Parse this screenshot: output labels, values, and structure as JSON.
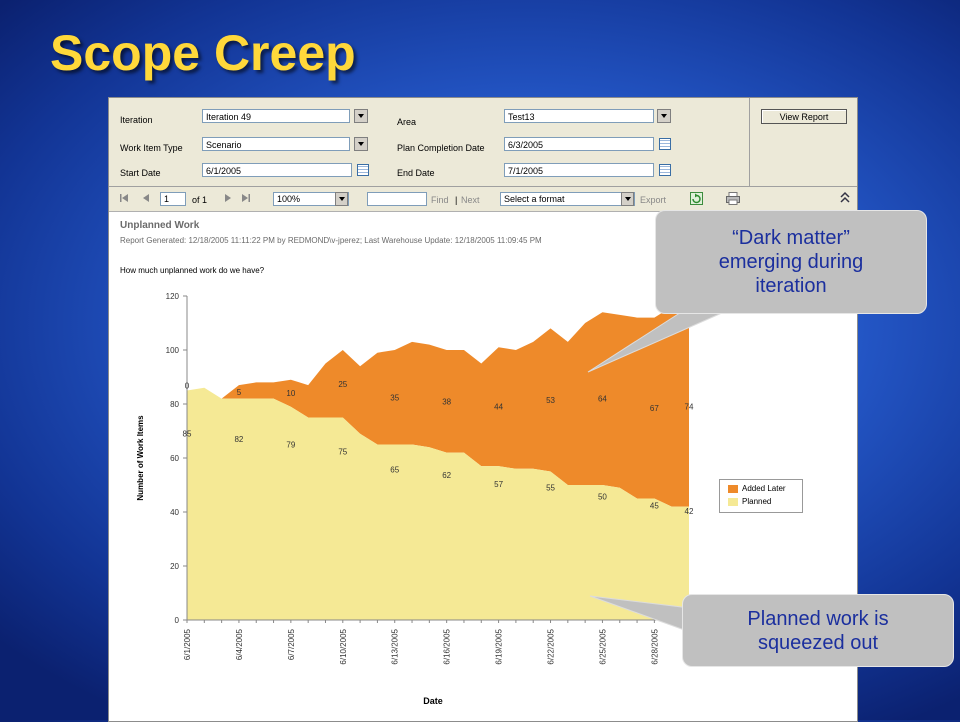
{
  "slide": {
    "title": "Scope Creep"
  },
  "parameters": {
    "iteration_label": "Iteration",
    "iteration_value": "Iteration 49",
    "work_item_type_label": "Work Item Type",
    "work_item_type_value": "Scenario",
    "start_date_label": "Start Date",
    "start_date_value": "6/1/2005",
    "area_label": "Area",
    "area_value": "Test13",
    "plan_completion_label": "Plan Completion Date",
    "plan_completion_value": "6/3/2005",
    "end_date_label": "End Date",
    "end_date_value": "7/1/2005",
    "view_report_label": "View Report"
  },
  "toolbar": {
    "page_number": "1",
    "of_pages": "of 1",
    "zoom": "100%",
    "find_label": "Find",
    "separator": "|",
    "next_label": "Next",
    "format_select": "Select a format",
    "export_label": "Export",
    "icons": [
      "first-page-icon",
      "prev-page-icon",
      "next-page-icon",
      "last-page-icon",
      "refresh-icon",
      "print-icon",
      "collapse-icon"
    ]
  },
  "report": {
    "title": "Unplanned Work",
    "meta": "Report Generated: 12/18/2005 11:11:22 PM by REDMOND\\v-jperez; Last Warehouse Update: 12/18/2005 11:09:45 PM",
    "question": "How much unplanned work do we have?"
  },
  "chart_data": {
    "type": "area",
    "stacked": true,
    "xlabel": "Date",
    "ylabel": "Number of Work Items",
    "ylim": [
      0,
      120
    ],
    "yticks": [
      0,
      20,
      40,
      60,
      80,
      100,
      120
    ],
    "x": [
      "6/1/2005",
      "6/2/2005",
      "6/3/2005",
      "6/4/2005",
      "6/5/2005",
      "6/6/2005",
      "6/7/2005",
      "6/8/2005",
      "6/9/2005",
      "6/10/2005",
      "6/11/2005",
      "6/12/2005",
      "6/13/2005",
      "6/14/2005",
      "6/15/2005",
      "6/16/2005",
      "6/17/2005",
      "6/18/2005",
      "6/19/2005",
      "6/20/2005",
      "6/21/2005",
      "6/22/2005",
      "6/23/2005",
      "6/24/2005",
      "6/25/2005",
      "6/26/2005",
      "6/27/2005",
      "6/28/2005",
      "6/29/2005",
      "6/30/2005"
    ],
    "xtick_labels": [
      "6/1/2005",
      "6/4/2005",
      "6/7/2005",
      "6/10/2005",
      "6/13/2005",
      "6/16/2005",
      "6/19/2005",
      "6/22/2005",
      "6/25/2005",
      "6/28/2005"
    ],
    "xtick_index": [
      0,
      3,
      6,
      9,
      12,
      15,
      18,
      21,
      24,
      27
    ],
    "series": [
      {
        "name": "Planned",
        "color": "#f5e995",
        "values": [
          85,
          86,
          82,
          82,
          82,
          82,
          79,
          75,
          75,
          75,
          69,
          65,
          65,
          65,
          64,
          62,
          62,
          57,
          57,
          56,
          56,
          55,
          50,
          50,
          50,
          49,
          45,
          45,
          42,
          42
        ]
      },
      {
        "name": "Added Later",
        "color": "#ee8a2a",
        "values": [
          0,
          0,
          0,
          5,
          6,
          6,
          10,
          12,
          20,
          25,
          25,
          34,
          35,
          38,
          38,
          38,
          38,
          38,
          44,
          44,
          47,
          53,
          53,
          60,
          64,
          64,
          67,
          67,
          74,
          74
        ]
      }
    ],
    "data_labels": [
      {
        "index": 0,
        "planned": "85",
        "added": "0"
      },
      {
        "index": 3,
        "planned": "82",
        "added": "5"
      },
      {
        "index": 6,
        "planned": "79",
        "added": "10"
      },
      {
        "index": 9,
        "planned": "75",
        "added": "25"
      },
      {
        "index": 12,
        "planned": "65",
        "added": "35"
      },
      {
        "index": 15,
        "planned": "62",
        "added": "38"
      },
      {
        "index": 18,
        "planned": "57",
        "added": "44"
      },
      {
        "index": 21,
        "planned": "55",
        "added": "53"
      },
      {
        "index": 24,
        "planned": "50",
        "added": "64"
      },
      {
        "index": 27,
        "planned": "45",
        "added": "67"
      },
      {
        "index": 29,
        "planned": "42",
        "added": "74"
      }
    ],
    "legend": {
      "position": "right"
    }
  },
  "callouts": {
    "dark_matter_line1": "“Dark matter”",
    "dark_matter_line2": "emerging during",
    "dark_matter_line3": "iteration",
    "planned_line1": "Planned work is",
    "planned_line2": "squeezed out"
  }
}
